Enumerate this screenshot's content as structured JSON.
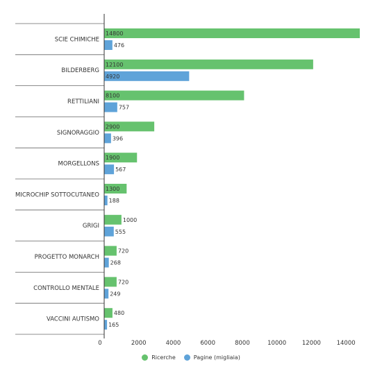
{
  "chart_data": {
    "type": "bar",
    "orientation": "horizontal",
    "categories": [
      "SCIE CHIMICHE",
      "BILDERBERG",
      "RETTILIANI",
      "SIGNORAGGIO",
      "MORGELLONS",
      "MICROCHIP SOTTOCUTANEO",
      "GRIGI",
      "PROGETTO MONARCH",
      "CONTROLLO MENTALE",
      "VACCINI AUTISMO"
    ],
    "series": [
      {
        "name": "Ricerche",
        "color": "#66c26e",
        "values": [
          14800,
          12100,
          8100,
          2900,
          1900,
          1300,
          1000,
          720,
          720,
          480
        ]
      },
      {
        "name": "Pagine (migliaia)",
        "color": "#5fa3d9",
        "values": [
          476,
          4920,
          757,
          396,
          567,
          188,
          555,
          268,
          249,
          165
        ]
      }
    ],
    "xticks": [
      "0",
      "2000",
      "4000",
      "6000",
      "8000",
      "10000",
      "12000",
      "14000"
    ],
    "xlim": [
      0,
      15000
    ],
    "grid": false,
    "legend_position": "bottom"
  }
}
